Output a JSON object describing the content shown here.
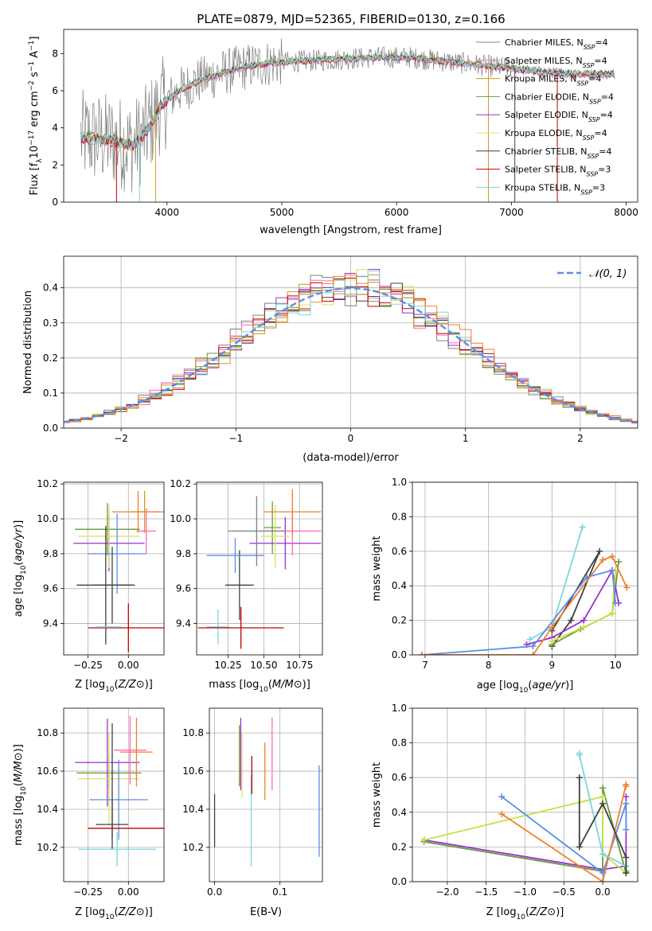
{
  "title": "PLATE=0879, MJD=52365, FIBERID=0130, z=0.166",
  "colors": {
    "Chabrier MILES": "#808080",
    "Salpeter MILES": "#ff69b4",
    "Kroupa MILES": "#cd9b1d",
    "Chabrier ELODIE": "#6a9a3a",
    "Salpeter ELODIE": "#9932cc",
    "Kroupa ELODIE": "#e0e060",
    "Chabrier STELIB": "#404040",
    "Salpeter STELIB": "#c00000",
    "Kroupa STELIB": "#7fd4dc",
    "summary_blue": "#5b8ee6",
    "summary_orange": "#f07f2a",
    "summary_green": "#5fb15f",
    "summary_lime": "#c8e040"
  },
  "chart_data": [
    {
      "id": "spectrum",
      "type": "line",
      "xlabel": "wavelength [Angstrom, rest frame]",
      "ylabel": "Flux [f_λ 10^-17 erg cm^-2 s^-1 A^-1]",
      "xlim": [
        3100,
        8100
      ],
      "ylim": [
        0,
        9.3
      ],
      "xticks": [
        "4000",
        "5000",
        "6000",
        "7000",
        "8000"
      ],
      "xtick_values": [
        4000,
        5000,
        6000,
        7000,
        8000
      ],
      "yticks": [
        "0",
        "2",
        "4",
        "6",
        "8"
      ],
      "ytick_values": [
        0,
        2,
        4,
        6,
        8
      ],
      "legend_placement": "right",
      "legend": [
        {
          "model": "Chabrier MILES",
          "nssp": "4"
        },
        {
          "model": "Salpeter MILES",
          "nssp": "4"
        },
        {
          "model": "Kroupa MILES",
          "nssp": "4"
        },
        {
          "model": "Chabrier ELODIE",
          "nssp": "4"
        },
        {
          "model": "Salpeter ELODIE",
          "nssp": "4"
        },
        {
          "model": "Kroupa ELODIE",
          "nssp": "4"
        },
        {
          "model": "Chabrier STELIB",
          "nssp": "4"
        },
        {
          "model": "Salpeter STELIB",
          "nssp": "3"
        },
        {
          "model": "Kroupa STELIB",
          "nssp": "3"
        }
      ],
      "continuum": {
        "x": [
          3250,
          3400,
          3550,
          3700,
          3800,
          3950,
          4100,
          4300,
          4500,
          4700,
          4900,
          5200,
          5500,
          5800,
          6100,
          6400,
          6700,
          7000,
          7300,
          7600,
          7900
        ],
        "y": [
          3.5,
          3.4,
          3.3,
          3.0,
          3.6,
          5.2,
          6.0,
          6.6,
          7.0,
          7.3,
          7.5,
          7.6,
          7.7,
          7.8,
          7.8,
          7.6,
          7.4,
          7.2,
          7.0,
          6.9,
          6.9
        ]
      },
      "data_range": [
        3250,
        7900
      ]
    },
    {
      "id": "residuals",
      "type": "line",
      "xlabel": "(data-model)/error",
      "ylabel": "Normed distribution",
      "xlim": [
        -2.5,
        2.5
      ],
      "ylim": [
        0,
        0.49
      ],
      "xticks": [
        "−2",
        "−1",
        "0",
        "1",
        "2"
      ],
      "xtick_values": [
        -2,
        -1,
        0,
        1,
        2
      ],
      "yticks": [
        "0.0",
        "0.1",
        "0.2",
        "0.3",
        "0.4"
      ],
      "ytick_values": [
        0,
        0.1,
        0.2,
        0.3,
        0.4
      ],
      "reference": {
        "name": "𝒩(0, 1)",
        "mean": 0,
        "sigma": 1,
        "style": "dashed",
        "color": "#5b8ee6"
      },
      "bin_width": 0.1,
      "legend_placement": "top-right"
    },
    {
      "id": "age-vs-Z",
      "type": "scatter",
      "xlabel": "Z [log10(Z/Z⊙)]",
      "ylabel": "age [log10(age/yr)]",
      "xlim": [
        -0.4,
        0.22
      ],
      "ylim": [
        9.22,
        10.21
      ],
      "xticks": [
        "−0.25",
        "0.00"
      ],
      "xtick_values": [
        -0.25,
        0.0
      ],
      "yticks": [
        "9.4",
        "9.6",
        "9.8",
        "10.0",
        "10.2"
      ],
      "ytick_values": [
        9.4,
        9.6,
        9.8,
        10.0,
        10.2
      ],
      "points": [
        {
          "x": -0.13,
          "xerr": 0.2,
          "y": 9.94,
          "yerr": 0.15,
          "c": "#6a9a3a"
        },
        {
          "x": -0.12,
          "xerr": 0.22,
          "y": 9.86,
          "yerr": 0.16,
          "c": "#9932cc"
        },
        {
          "x": -0.12,
          "xerr": 0.19,
          "y": 9.9,
          "yerr": 0.18,
          "c": "#e0e060"
        },
        {
          "x": 0.11,
          "xerr": 0.06,
          "y": 9.93,
          "yerr": 0.13,
          "c": "#ff69b4"
        },
        {
          "x": 0.1,
          "xerr": 0.09,
          "y": 10.04,
          "yerr": 0.12,
          "c": "#cd9b1d"
        },
        {
          "x": 0.06,
          "xerr": 0.16,
          "y": 10.04,
          "yerr": 0.12,
          "c": "#f07f2a"
        },
        {
          "x": -0.07,
          "xerr": 0.18,
          "y": 9.8,
          "yerr": 0.23,
          "c": "#5b8ee6"
        },
        {
          "x": -0.1,
          "xerr": 0.12,
          "y": 9.62,
          "yerr": 0.22,
          "c": "#404040"
        },
        {
          "x": -0.14,
          "xerr": 0.18,
          "y": 9.62,
          "yerr": 0.34,
          "c": "#404040"
        },
        {
          "x": 0.0,
          "xerr": 0.25,
          "y": 9.375,
          "yerr": 0.14,
          "c": "#c00000"
        },
        {
          "x": -0.12,
          "xerr": 0.08,
          "y": 9.38,
          "yerr": 0.0,
          "c": "#7fd4dc"
        }
      ]
    },
    {
      "id": "age-vs-mass",
      "type": "scatter",
      "xlabel": "mass [log10(M/M⊙)]",
      "ylabel": "",
      "xlim": [
        10.03,
        10.91
      ],
      "ylim": [
        9.22,
        10.21
      ],
      "xticks": [
        "10.25",
        "10.50",
        "10.75"
      ],
      "xtick_values": [
        10.25,
        10.5,
        10.75
      ],
      "yticks": [
        "9.4",
        "9.6",
        "9.8",
        "10.0",
        "10.2"
      ],
      "ytick_values": [
        9.4,
        9.6,
        9.8,
        10.0,
        10.2
      ],
      "points": [
        {
          "x": 10.18,
          "xerr": 0.08,
          "y": 9.38,
          "yerr": 0.1,
          "c": "#7fd4dc"
        },
        {
          "x": 10.34,
          "xerr": 0.3,
          "y": 9.375,
          "yerr": 0.12,
          "c": "#c00000"
        },
        {
          "x": 10.33,
          "xerr": 0.1,
          "y": 9.62,
          "yerr": 0.2,
          "c": "#404040"
        },
        {
          "x": 10.3,
          "xerr": 0.2,
          "y": 9.79,
          "yerr": 0.1,
          "c": "#5b8ee6"
        },
        {
          "x": 10.56,
          "xerr": 0.06,
          "y": 9.95,
          "yerr": 0.15,
          "c": "#6a9a3a"
        },
        {
          "x": 10.65,
          "xerr": 0.25,
          "y": 9.86,
          "yerr": 0.15,
          "c": "#9932cc"
        },
        {
          "x": 10.58,
          "xerr": 0.1,
          "y": 9.9,
          "yerr": 0.18,
          "c": "#e0e060"
        },
        {
          "x": 10.7,
          "xerr": 0.2,
          "y": 9.93,
          "yerr": 0.14,
          "c": "#ff69b4"
        },
        {
          "x": 10.7,
          "xerr": 0.2,
          "y": 10.04,
          "yerr": 0.13,
          "c": "#f07f2a"
        },
        {
          "x": 10.45,
          "xerr": 0.2,
          "y": 9.93,
          "yerr": 0.2,
          "c": "#808080"
        }
      ]
    },
    {
      "id": "weight-vs-age",
      "type": "line",
      "xlabel": "age [log10(age/yr)]",
      "ylabel": "mass weight",
      "xlim": [
        6.8,
        10.35
      ],
      "ylim": [
        0,
        1.0
      ],
      "xticks": [
        "7",
        "8",
        "9",
        "10"
      ],
      "xtick_values": [
        7,
        8,
        9,
        10
      ],
      "yticks": [
        "0.0",
        "0.2",
        "0.4",
        "0.6",
        "0.8",
        "1.0"
      ],
      "ytick_values": [
        0,
        0.2,
        0.4,
        0.6,
        0.8,
        1.0
      ],
      "series": [
        {
          "c": "#7fd4dc",
          "x": [
            8.65,
            9.0,
            9.48,
            9.48
          ],
          "y": [
            0.09,
            0.16,
            0.74,
            0.74
          ]
        },
        {
          "c": "#404040",
          "x": [
            9.0,
            9.3,
            9.75,
            9.0
          ],
          "y": [
            0.05,
            0.2,
            0.6,
            0.14
          ]
        },
        {
          "c": "#6a9a3a",
          "x": [
            9.0,
            9.45,
            9.95,
            10.05
          ],
          "y": [
            0.06,
            0.15,
            0.24,
            0.54
          ]
        },
        {
          "c": "#9932cc",
          "x": [
            8.6,
            9.0,
            9.5,
            9.95,
            10.05
          ],
          "y": [
            0.06,
            0.1,
            0.2,
            0.49,
            0.3
          ]
        },
        {
          "c": "#c8e040",
          "x": [
            9.0,
            9.5,
            9.95,
            10.0
          ],
          "y": [
            0.08,
            0.16,
            0.24,
            0.49
          ]
        },
        {
          "c": "#5b8ee6",
          "x": [
            6.95,
            8.7,
            9.55,
            9.95,
            10.0
          ],
          "y": [
            0.0,
            0.05,
            0.45,
            0.49,
            0.3
          ]
        },
        {
          "c": "#f07f2a",
          "x": [
            6.95,
            8.7,
            9.0,
            9.8,
            9.95,
            10.18
          ],
          "y": [
            0.0,
            0.0,
            0.16,
            0.55,
            0.57,
            0.39
          ]
        }
      ]
    },
    {
      "id": "mass-vs-Z",
      "type": "scatter",
      "xlabel": "Z [log10(Z/Z⊙)]",
      "ylabel": "mass [log10(M/M⊙)]",
      "xlim": [
        -0.4,
        0.22
      ],
      "ylim": [
        10.02,
        10.93
      ],
      "xticks": [
        "−0.25",
        "0.00"
      ],
      "xtick_values": [
        -0.25,
        0.0
      ],
      "yticks": [
        "10.2",
        "10.4",
        "10.6",
        "10.8"
      ],
      "ytick_values": [
        10.2,
        10.4,
        10.6,
        10.8
      ],
      "points": [
        {
          "x": -0.12,
          "xerr": 0.2,
          "y": 10.59,
          "yerr": 0.08,
          "c": "#6a9a3a"
        },
        {
          "x": -0.13,
          "xerr": 0.2,
          "y": 10.645,
          "yerr": 0.23,
          "c": "#9932cc"
        },
        {
          "x": -0.12,
          "xerr": 0.19,
          "y": 10.56,
          "yerr": 0.24,
          "c": "#e0e060"
        },
        {
          "x": 0.01,
          "xerr": 0.1,
          "y": 10.71,
          "yerr": 0.18,
          "c": "#ff69b4"
        },
        {
          "x": 0.05,
          "xerr": 0.1,
          "y": 10.7,
          "yerr": 0.18,
          "c": "#f07f2a"
        },
        {
          "x": -0.06,
          "xerr": 0.18,
          "y": 10.45,
          "yerr": 0.21,
          "c": "#5b8ee6"
        },
        {
          "x": -0.1,
          "xerr": 0.1,
          "y": 10.32,
          "yerr": 0.13,
          "c": "#404040"
        },
        {
          "x": 0.0,
          "xerr": 0.25,
          "y": 10.3,
          "yerr": 0.0,
          "c": "#c00000"
        },
        {
          "x": -0.07,
          "xerr": 0.24,
          "y": 10.19,
          "yerr": 0.09,
          "c": "#7fd4dc"
        },
        {
          "x": -0.1,
          "xerr": 0.0,
          "y": 10.55,
          "yerr": 0.3,
          "c": "#404040"
        }
      ]
    },
    {
      "id": "mass-vs-ebv",
      "type": "scatter",
      "xlabel": "E(B-V)",
      "ylabel": "",
      "xlim": [
        -0.008,
        0.165
      ],
      "ylim": [
        10.02,
        10.93
      ],
      "xticks": [
        "0.0",
        "0.1"
      ],
      "xtick_values": [
        0.0,
        0.1
      ],
      "yticks": [
        "10.2",
        "10.4",
        "10.6",
        "10.8"
      ],
      "ytick_values": [
        10.2,
        10.4,
        10.6,
        10.8
      ],
      "points": [
        {
          "x": 0.0,
          "y": 10.34,
          "yerr": 0.14,
          "c": "#404040"
        },
        {
          "x": 0.038,
          "y": 10.68,
          "yerr": 0.16,
          "c": "#6a9a3a"
        },
        {
          "x": 0.04,
          "y": 10.69,
          "yerr": 0.19,
          "c": "#9932cc"
        },
        {
          "x": 0.042,
          "y": 10.63,
          "yerr": 0.17,
          "c": "#e0e060"
        },
        {
          "x": 0.056,
          "y": 10.34,
          "yerr": 0.24,
          "c": "#7fd4dc"
        },
        {
          "x": 0.057,
          "y": 10.58,
          "yerr": 0.1,
          "c": "#c00000"
        },
        {
          "x": 0.077,
          "y": 10.6,
          "yerr": 0.15,
          "c": "#f07f2a"
        },
        {
          "x": 0.088,
          "y": 10.69,
          "yerr": 0.19,
          "c": "#ff69b4"
        },
        {
          "x": 0.16,
          "y": 10.39,
          "yerr": 0.24,
          "c": "#5b8ee6"
        }
      ]
    },
    {
      "id": "weight-vs-Z",
      "type": "line",
      "xlabel": "Z [log10(Z/Z⊙)]",
      "ylabel": "mass weight",
      "xlim": [
        -2.45,
        0.45
      ],
      "ylim": [
        0,
        1.0
      ],
      "xticks": [
        "−2.0",
        "−1.5",
        "−1.0",
        "−0.5",
        "0.0"
      ],
      "xtick_values": [
        -2.0,
        -1.5,
        -1.0,
        -0.5,
        0.0
      ],
      "yticks": [
        "0.0",
        "0.2",
        "0.4",
        "0.6",
        "0.8",
        "1.0"
      ],
      "ytick_values": [
        0,
        0.2,
        0.4,
        0.6,
        0.8,
        1.0
      ],
      "series": [
        {
          "c": "#9932cc",
          "x": [
            -2.3,
            0.0,
            0.3,
            0.3
          ],
          "y": [
            0.24,
            0.07,
            0.09,
            0.49
          ]
        },
        {
          "c": "#6a9a3a",
          "x": [
            -2.3,
            0.0,
            0.0,
            0.3,
            0.3
          ],
          "y": [
            0.23,
            0.06,
            0.54,
            0.05,
            0.06
          ]
        },
        {
          "c": "#c8e040",
          "x": [
            -2.3,
            0.0,
            0.0,
            0.3
          ],
          "y": [
            0.24,
            0.49,
            0.16,
            0.05
          ]
        },
        {
          "c": "#5b8ee6",
          "x": [
            -1.3,
            0.0,
            0.3,
            0.3
          ],
          "y": [
            0.49,
            0.05,
            0.45,
            0.3
          ]
        },
        {
          "c": "#f07f2a",
          "x": [
            -1.3,
            0.0,
            0.3,
            0.3
          ],
          "y": [
            0.39,
            0.0,
            0.56,
            0.55
          ]
        },
        {
          "c": "#7fd4dc",
          "x": [
            -0.3,
            -0.3,
            0.0,
            0.3
          ],
          "y": [
            0.74,
            0.73,
            0.16,
            0.09
          ]
        },
        {
          "c": "#404040",
          "x": [
            -0.3,
            -0.3,
            0.0,
            0.3,
            0.3
          ],
          "y": [
            0.6,
            0.2,
            0.45,
            0.14,
            0.05
          ]
        }
      ]
    }
  ]
}
